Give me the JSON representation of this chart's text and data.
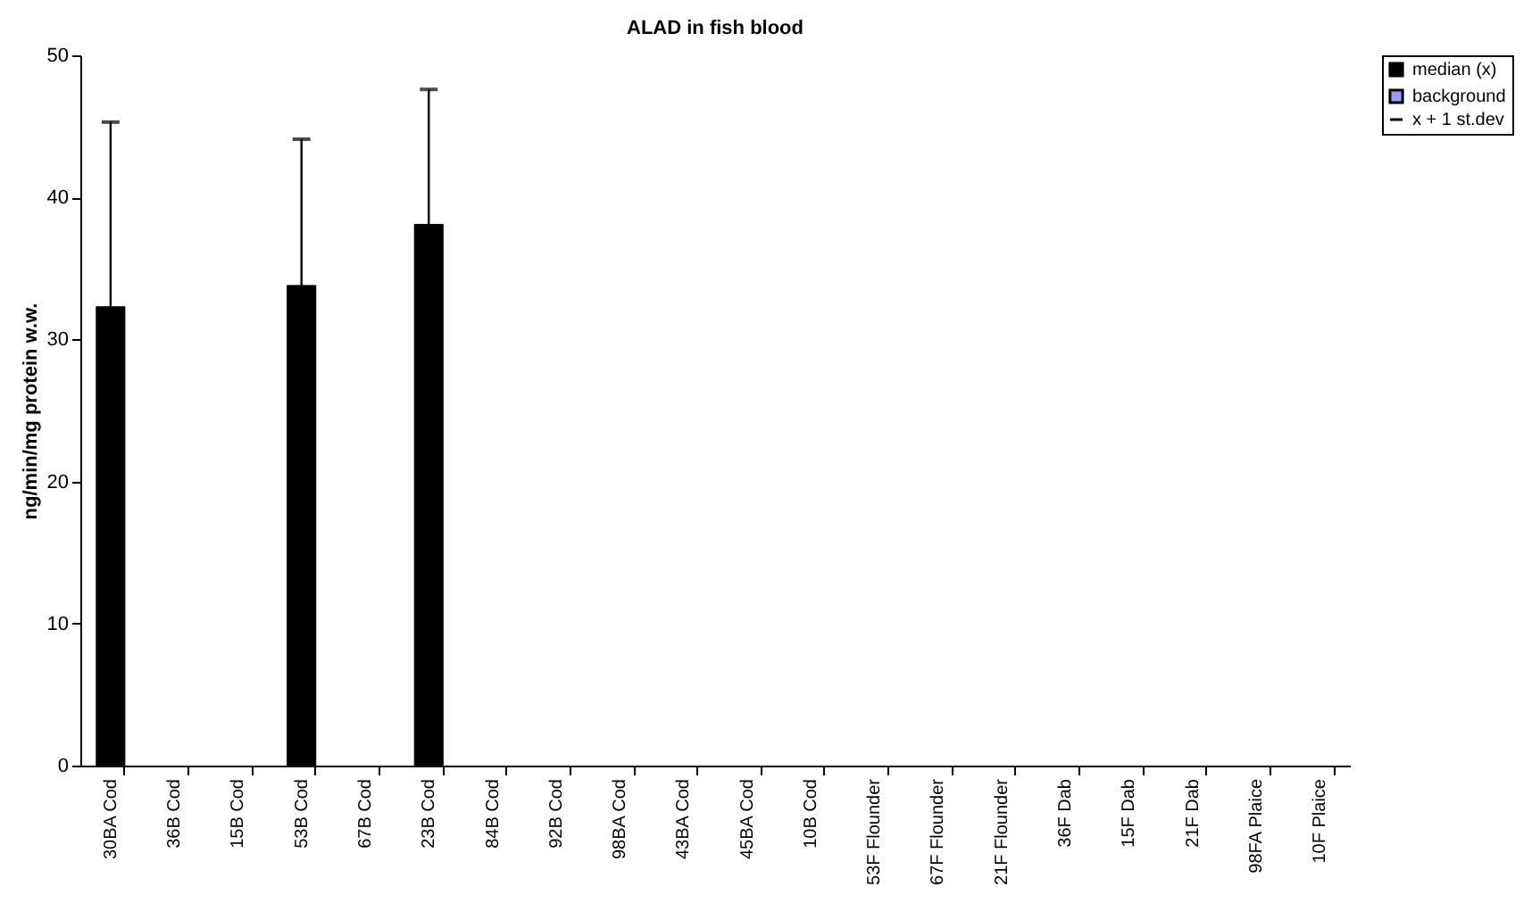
{
  "chart_data": {
    "type": "bar",
    "title": "ALAD in fish blood",
    "ylabel": "ng/min/mg protein w.w.",
    "categories": [
      "30BA Cod",
      "36B Cod",
      "15B Cod",
      "53B Cod",
      "67B Cod",
      "23B Cod",
      "84B Cod",
      "92B Cod",
      "98BA Cod",
      "43BA Cod",
      "45BA Cod",
      "10B Cod",
      "53F Flounder",
      "67F Flounder",
      "21F Flounder",
      "36F Dab",
      "15F Dab",
      "21F Dab",
      "98FA Plaice",
      "10F Plaice"
    ],
    "series": [
      {
        "name": "median (x)",
        "color": "#000000",
        "values": [
          32.3,
          null,
          null,
          33.8,
          null,
          38.1,
          null,
          null,
          null,
          null,
          null,
          null,
          null,
          null,
          null,
          null,
          null,
          null,
          null,
          null
        ],
        "errors": [
          [
            32.3,
            45.3
          ],
          null,
          null,
          [
            33.8,
            44.1
          ],
          null,
          [
            38.1,
            47.6
          ],
          null,
          null,
          null,
          null,
          null,
          null,
          null,
          null,
          null,
          null,
          null,
          null,
          null,
          null
        ]
      },
      {
        "name": "background",
        "color": "#9999ff",
        "values": [
          null,
          null,
          null,
          null,
          null,
          null,
          null,
          null,
          null,
          null,
          null,
          null,
          null,
          null,
          null,
          null,
          null,
          null,
          null,
          null
        ]
      }
    ],
    "annotations": [
      "x + 1 st.dev"
    ],
    "ylim": [
      0,
      50
    ],
    "yticks": [
      0,
      10,
      20,
      30,
      40,
      50
    ],
    "grid": false,
    "legend": "right"
  }
}
